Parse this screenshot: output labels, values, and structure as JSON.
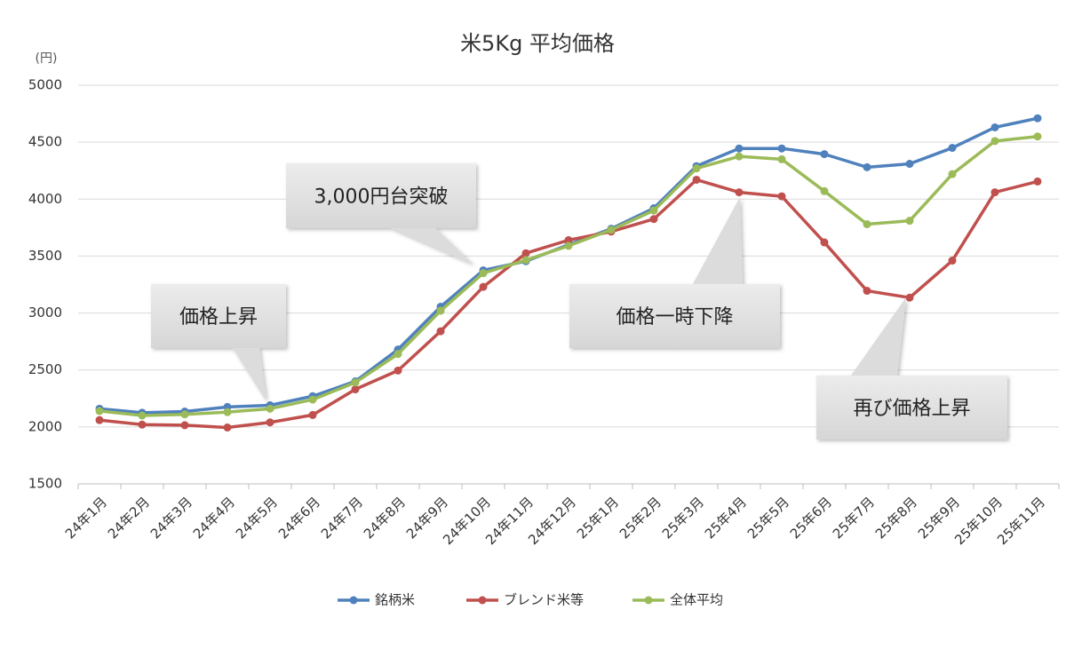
{
  "chart_data": {
    "type": "line",
    "title": "米5Kg 平均価格",
    "y_unit_label": "(円)",
    "categories": [
      "24年1月",
      "24年2月",
      "24年3月",
      "24年4月",
      "24年5月",
      "24年6月",
      "24年7月",
      "24年8月",
      "24年9月",
      "24年10月",
      "24年11月",
      "24年12月",
      "25年1月",
      "25年2月",
      "25年3月",
      "25年4月",
      "25年5月",
      "25年6月",
      "25年7月",
      "25年8月",
      "25年9月",
      "25年10月",
      "25年11月"
    ],
    "series": [
      {
        "name": "銘柄米",
        "color": "#4f81bd",
        "values": [
          2160,
          2125,
          2135,
          2175,
          2190,
          2270,
          2400,
          2680,
          3055,
          3375,
          3455,
          3600,
          3740,
          3920,
          4290,
          4445,
          4445,
          4395,
          4280,
          4310,
          4450,
          4630,
          4710
        ]
      },
      {
        "name": "ブレンド米等",
        "color": "#c0504d",
        "values": [
          2060,
          2020,
          2015,
          1995,
          2040,
          2105,
          2330,
          2495,
          2840,
          3230,
          3525,
          3640,
          3715,
          3825,
          4170,
          4060,
          4025,
          3620,
          3195,
          3135,
          3460,
          4060,
          4155
        ]
      },
      {
        "name": "全体平均",
        "color": "#9bbb59",
        "values": [
          2140,
          2100,
          2110,
          2130,
          2160,
          2240,
          2390,
          2640,
          3020,
          3350,
          3465,
          3590,
          3730,
          3900,
          4270,
          4375,
          4350,
          4070,
          3780,
          3810,
          4220,
          4510,
          4550
        ]
      }
    ],
    "ylim": [
      1500,
      5000
    ],
    "yticks": [
      1500,
      2000,
      2500,
      3000,
      3500,
      4000,
      4500,
      5000
    ],
    "grid": true,
    "legend": "bottom",
    "annotations": [
      "価格上昇",
      "3,000円台突破",
      "価格一時下降",
      "再び価格上昇"
    ]
  }
}
